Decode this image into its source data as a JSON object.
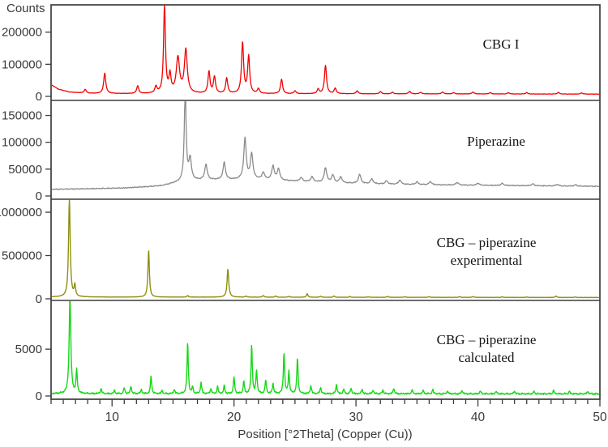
{
  "figure": {
    "background": "#ffffff",
    "frame_color": "#3d3d3d",
    "tick_text_color": "#3a3a3a",
    "label_text_color": "#141414"
  },
  "chart_data": {
    "type": "line",
    "title": "",
    "ylabel": "Counts",
    "xlabel": "Position [°2Theta] (Copper (Cu))",
    "x_range": [
      5,
      50
    ],
    "x_major_ticks": [
      10,
      20,
      30,
      40,
      50
    ],
    "x_minor_step": 1,
    "grid": "off",
    "legend_position": "inside-panel-right",
    "panels": [
      {
        "id": "cbg-i",
        "label": "CBG I",
        "label_line1": "CBG I",
        "color": "#f40000",
        "ymax": 285000,
        "y_ticks": [
          0,
          100000,
          200000
        ],
        "peak_width": 0.1,
        "noise": 1500,
        "baseline": [
          [
            5,
            36000
          ],
          [
            5.6,
            22000
          ],
          [
            6.5,
            13000
          ],
          [
            8,
            9000
          ],
          [
            12,
            8200
          ],
          [
            20,
            8000
          ],
          [
            30,
            7500
          ],
          [
            40,
            7000
          ],
          [
            50,
            6500
          ]
        ],
        "peaks": [
          [
            7.8,
            12000
          ],
          [
            9.4,
            64000
          ],
          [
            12.1,
            24000
          ],
          [
            13.6,
            20000
          ],
          [
            14.3,
            278000,
            0.09
          ],
          [
            14.75,
            55000
          ],
          [
            15.4,
            110000,
            0.16
          ],
          [
            16.05,
            135000,
            0.14
          ],
          [
            17.95,
            68000
          ],
          [
            18.4,
            52000
          ],
          [
            19.4,
            48000
          ],
          [
            20.7,
            158000
          ],
          [
            21.2,
            115000
          ],
          [
            22.0,
            15000
          ],
          [
            23.9,
            45000
          ],
          [
            25.0,
            9000
          ],
          [
            26.9,
            14000
          ],
          [
            27.5,
            88000
          ],
          [
            28.3,
            17000
          ],
          [
            30.1,
            9000
          ],
          [
            32.0,
            7000
          ],
          [
            33.0,
            5000
          ],
          [
            34.4,
            8000
          ],
          [
            35.3,
            5000
          ],
          [
            37.1,
            6000
          ],
          [
            38.0,
            4000
          ],
          [
            39.6,
            6000
          ],
          [
            41.0,
            4000
          ],
          [
            42.5,
            4000
          ],
          [
            44.0,
            4500
          ],
          [
            46.6,
            5000
          ],
          [
            48.5,
            3500
          ]
        ]
      },
      {
        "id": "piperazine",
        "label": "Piperazine",
        "label_line1": "Piperazine",
        "color": "#8c8c8c",
        "ymax": 178000,
        "y_ticks": [
          0,
          50000,
          100000,
          150000
        ],
        "peak_width": 0.12,
        "noise": 2600,
        "baseline": [
          [
            5,
            11500
          ],
          [
            8,
            12500
          ],
          [
            11,
            14000
          ],
          [
            14,
            18000
          ],
          [
            15.3,
            24000
          ],
          [
            16.6,
            28000
          ],
          [
            18,
            29000
          ],
          [
            22,
            30000
          ],
          [
            24,
            28000
          ],
          [
            26,
            26000
          ],
          [
            28,
            24000
          ],
          [
            30,
            22500
          ],
          [
            33,
            21000
          ],
          [
            36,
            20000
          ],
          [
            40,
            19000
          ],
          [
            45,
            18000
          ],
          [
            50,
            17000
          ]
        ],
        "peaks": [
          [
            16.0,
            172000,
            0.09
          ],
          [
            16.4,
            40000
          ],
          [
            17.7,
            29000
          ],
          [
            19.2,
            32000
          ],
          [
            20.9,
            76000
          ],
          [
            21.45,
            47000
          ],
          [
            22.4,
            13000
          ],
          [
            23.2,
            26000
          ],
          [
            23.65,
            21000
          ],
          [
            25.5,
            7000
          ],
          [
            26.4,
            9000
          ],
          [
            27.5,
            27000
          ],
          [
            28.1,
            14000
          ],
          [
            28.75,
            11000
          ],
          [
            30.3,
            17000
          ],
          [
            31.3,
            9000
          ],
          [
            32.5,
            6000
          ],
          [
            33.6,
            8000
          ],
          [
            35.0,
            5000
          ],
          [
            36.1,
            6000
          ],
          [
            38.3,
            5000
          ],
          [
            40.0,
            4000
          ],
          [
            42.0,
            4000
          ],
          [
            44.5,
            3500
          ],
          [
            46.5,
            3000
          ],
          [
            48.0,
            2500
          ]
        ]
      },
      {
        "id": "cbg-piperazine-experimental",
        "label": "CBG – piperazine experimental",
        "label_line1": "CBG – piperazine",
        "label_line2": "experimental",
        "color": "#8f8f10",
        "ymax": 1150000,
        "y_ticks": [
          0,
          500000,
          1000000
        ],
        "peak_width": 0.07,
        "noise": 4000,
        "baseline": [
          [
            5,
            20000
          ],
          [
            10,
            19000
          ],
          [
            20,
            18000
          ],
          [
            30,
            16000
          ],
          [
            40,
            15000
          ],
          [
            50,
            14000
          ]
        ],
        "peaks": [
          [
            6.5,
            1140000,
            0.08
          ],
          [
            6.95,
            130000
          ],
          [
            13.0,
            545000
          ],
          [
            16.2,
            18000
          ],
          [
            19.5,
            325000,
            0.08
          ],
          [
            21.0,
            12000
          ],
          [
            22.4,
            20000
          ],
          [
            23.4,
            14000
          ],
          [
            24.5,
            10000
          ],
          [
            26.0,
            40000
          ],
          [
            27.1,
            12000
          ],
          [
            28.2,
            14000
          ],
          [
            29.5,
            9000
          ],
          [
            31.0,
            7000
          ],
          [
            32.6,
            11000
          ],
          [
            34.0,
            7000
          ],
          [
            36.0,
            8000
          ],
          [
            38.5,
            8000
          ],
          [
            39.6,
            10000
          ],
          [
            42.0,
            6000
          ],
          [
            44.0,
            5000
          ],
          [
            46.4,
            16000
          ],
          [
            48.0,
            5000
          ]
        ]
      },
      {
        "id": "cbg-piperazine-calculated",
        "label": "CBG – piperazine calculated",
        "label_line1": "CBG – piperazine",
        "label_line2": "calculated",
        "color": "#16d816",
        "ymax": 10200,
        "y_ticks": [
          0,
          5000
        ],
        "peak_width": 0.06,
        "noise": 260,
        "baseline": [
          [
            5,
            150
          ],
          [
            50,
            130
          ]
        ],
        "peaks": [
          [
            6.55,
            10500,
            0.08
          ],
          [
            7.1,
            2500
          ],
          [
            9.1,
            550
          ],
          [
            10.2,
            350
          ],
          [
            11.0,
            650
          ],
          [
            11.55,
            800
          ],
          [
            12.4,
            450
          ],
          [
            13.2,
            1900
          ],
          [
            14.1,
            350
          ],
          [
            15.1,
            450
          ],
          [
            16.2,
            5500
          ],
          [
            16.6,
            700
          ],
          [
            17.3,
            1200
          ],
          [
            18.1,
            550
          ],
          [
            18.65,
            750
          ],
          [
            19.2,
            850
          ],
          [
            20.0,
            1800
          ],
          [
            20.8,
            1300
          ],
          [
            21.45,
            5200
          ],
          [
            21.85,
            2500
          ],
          [
            22.6,
            1450
          ],
          [
            23.2,
            1100
          ],
          [
            24.1,
            4400
          ],
          [
            24.5,
            2400
          ],
          [
            25.2,
            3800
          ],
          [
            26.3,
            850
          ],
          [
            27.1,
            700
          ],
          [
            28.4,
            1000
          ],
          [
            29.0,
            500
          ],
          [
            29.6,
            600
          ],
          [
            30.5,
            500
          ],
          [
            31.4,
            400
          ],
          [
            32.2,
            400
          ],
          [
            33.1,
            600
          ],
          [
            34.6,
            400
          ],
          [
            35.5,
            350
          ],
          [
            36.3,
            450
          ],
          [
            37.5,
            300
          ],
          [
            38.7,
            350
          ],
          [
            40.2,
            300
          ],
          [
            41.5,
            250
          ],
          [
            43.0,
            300
          ],
          [
            44.6,
            250
          ],
          [
            46.2,
            350
          ],
          [
            47.5,
            250
          ],
          [
            49.0,
            250
          ]
        ]
      }
    ]
  }
}
